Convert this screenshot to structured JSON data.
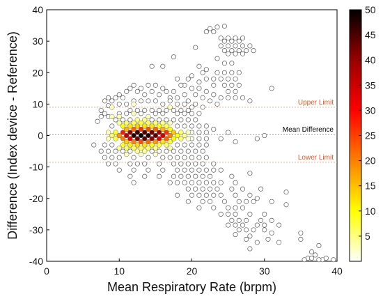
{
  "chart_data": {
    "type": "scatter",
    "subtype": "hexbin-density",
    "xlabel": "Mean Respiratory Rate (brpm)",
    "ylabel": "Difference (Index device - Reference)",
    "xlim": [
      0,
      40
    ],
    "ylim": [
      -40,
      40
    ],
    "x_ticks": [
      0,
      10,
      20,
      30,
      40
    ],
    "y_ticks": [
      -40,
      -30,
      -20,
      -10,
      0,
      10,
      20,
      30,
      40
    ],
    "grid": false,
    "reference_lines": [
      {
        "label": "Upper Limit",
        "y": 9,
        "color": "#f4a582"
      },
      {
        "label": "Mean Difference",
        "y": 0.3,
        "color": "#999999"
      },
      {
        "label": "Lower Limit",
        "y": -8.5,
        "color": "#f4a582"
      }
    ],
    "colorbar": {
      "min": 0,
      "max": 50,
      "ticks": [
        5,
        10,
        15,
        20,
        25,
        30,
        35,
        40,
        45,
        50
      ],
      "colors": [
        "#ffffff",
        "#ffff00",
        "#ff8000",
        "#ff0000",
        "#990000",
        "#000000"
      ]
    },
    "core_points": [
      [
        10.5,
        1,
        28
      ],
      [
        11.5,
        1,
        40
      ],
      [
        12.5,
        1,
        46
      ],
      [
        13.5,
        1,
        45
      ],
      [
        14.5,
        1,
        42
      ],
      [
        15.5,
        1,
        38
      ],
      [
        16.5,
        1,
        26
      ],
      [
        17.5,
        1,
        14
      ],
      [
        10,
        0,
        18
      ],
      [
        11,
        0,
        36
      ],
      [
        12,
        0,
        48
      ],
      [
        13,
        0,
        50
      ],
      [
        14,
        0,
        48
      ],
      [
        15,
        0,
        44
      ],
      [
        16,
        0,
        34
      ],
      [
        17,
        0,
        20
      ],
      [
        18,
        0,
        10
      ],
      [
        10.5,
        -1,
        20
      ],
      [
        11.5,
        -1,
        32
      ],
      [
        12.5,
        -1,
        42
      ],
      [
        13.5,
        -1,
        44
      ],
      [
        14.5,
        -1,
        40
      ],
      [
        15.5,
        -1,
        32
      ],
      [
        16.5,
        -1,
        22
      ],
      [
        17.5,
        -1,
        10
      ],
      [
        11,
        2,
        16
      ],
      [
        12,
        2,
        22
      ],
      [
        13,
        2,
        26
      ],
      [
        14,
        2,
        24
      ],
      [
        15,
        2,
        22
      ],
      [
        16,
        2,
        16
      ],
      [
        17,
        2,
        10
      ],
      [
        11,
        -2,
        14
      ],
      [
        12,
        -2,
        20
      ],
      [
        13,
        -2,
        24
      ],
      [
        14,
        -2,
        22
      ],
      [
        15,
        -2,
        18
      ],
      [
        16,
        -2,
        12
      ],
      [
        17,
        -2,
        8
      ],
      [
        10.5,
        3,
        10
      ],
      [
        11.5,
        3,
        12
      ],
      [
        12.5,
        3,
        14
      ],
      [
        13.5,
        3,
        12
      ],
      [
        14.5,
        3,
        12
      ],
      [
        15.5,
        3,
        10
      ],
      [
        16.5,
        3,
        7
      ],
      [
        10.5,
        -3,
        9
      ],
      [
        11.5,
        -3,
        11
      ],
      [
        12.5,
        -3,
        13
      ],
      [
        13.5,
        -3,
        12
      ],
      [
        14.5,
        -3,
        10
      ],
      [
        15.5,
        -3,
        8
      ],
      [
        16.5,
        -3,
        6
      ],
      [
        9.5,
        1,
        9
      ],
      [
        9.5,
        -1,
        8
      ],
      [
        9,
        0,
        6
      ],
      [
        18.5,
        1,
        6
      ],
      [
        18.5,
        -1,
        6
      ],
      [
        19,
        0,
        4
      ],
      [
        11,
        4,
        6
      ],
      [
        12,
        4,
        7
      ],
      [
        13,
        4,
        8
      ],
      [
        14,
        4,
        7
      ],
      [
        15,
        4,
        6
      ],
      [
        16,
        4,
        5
      ],
      [
        11,
        -4,
        6
      ],
      [
        12,
        -4,
        7
      ],
      [
        13,
        -4,
        7
      ],
      [
        14,
        -4,
        6
      ],
      [
        15,
        -4,
        5
      ],
      [
        12.5,
        5,
        5
      ],
      [
        13.5,
        5,
        5
      ],
      [
        12.5,
        -5,
        4
      ],
      [
        13.5,
        -5,
        4
      ],
      [
        10,
        4,
        4
      ],
      [
        17,
        4,
        3
      ],
      [
        10,
        -4,
        4
      ],
      [
        17,
        -4,
        3
      ],
      [
        8.5,
        -1,
        3
      ],
      [
        8.5,
        1,
        3
      ],
      [
        19.5,
        1,
        3
      ],
      [
        19.5,
        -1,
        2
      ],
      [
        9,
        6,
        3
      ],
      [
        10,
        6,
        3
      ],
      [
        12,
        7,
        3
      ],
      [
        14,
        6,
        2
      ],
      [
        11,
        -6,
        3
      ],
      [
        13,
        -6,
        2
      ],
      [
        15,
        -6,
        2
      ],
      [
        17,
        9,
        3
      ],
      [
        9,
        9,
        3
      ],
      [
        12,
        10,
        2
      ]
    ],
    "outlier_points": [
      [
        22.5,
        34
      ],
      [
        23.5,
        34.5
      ],
      [
        24.5,
        34.8
      ],
      [
        22,
        33
      ],
      [
        23,
        33
      ],
      [
        24,
        31
      ],
      [
        25,
        31
      ],
      [
        26,
        31
      ],
      [
        27,
        31
      ],
      [
        24.5,
        30
      ],
      [
        25.5,
        30
      ],
      [
        26.5,
        30
      ],
      [
        24,
        28.5
      ],
      [
        25,
        28.5
      ],
      [
        26,
        28.5
      ],
      [
        27,
        28.5
      ],
      [
        28,
        28.5
      ],
      [
        24.5,
        27
      ],
      [
        25.5,
        27
      ],
      [
        26.5,
        27
      ],
      [
        27.5,
        27
      ],
      [
        28.5,
        27
      ],
      [
        25,
        26
      ],
      [
        26,
        26
      ],
      [
        27,
        26
      ],
      [
        17.5,
        25
      ],
      [
        23.5,
        24.5
      ],
      [
        24.5,
        23
      ],
      [
        25.5,
        23
      ],
      [
        23.5,
        20
      ],
      [
        24.5,
        20
      ],
      [
        25.5,
        20
      ],
      [
        26.5,
        20
      ],
      [
        23,
        18
      ],
      [
        24,
        18
      ],
      [
        25,
        18
      ],
      [
        26,
        18
      ],
      [
        24.5,
        16
      ],
      [
        25.5,
        16
      ],
      [
        26.5,
        16
      ],
      [
        25,
        14
      ],
      [
        26,
        14
      ],
      [
        24,
        12
      ],
      [
        25,
        12
      ],
      [
        26,
        12
      ],
      [
        27,
        12
      ],
      [
        28,
        11
      ],
      [
        31,
        15
      ],
      [
        14.5,
        22
      ],
      [
        16,
        22
      ],
      [
        20.5,
        28
      ],
      [
        21,
        22
      ],
      [
        22,
        21
      ],
      [
        21.5,
        20
      ],
      [
        22,
        18
      ],
      [
        23,
        16
      ],
      [
        21,
        15
      ],
      [
        22,
        14
      ],
      [
        23,
        13
      ],
      [
        20,
        19
      ],
      [
        19.5,
        18
      ],
      [
        21,
        17
      ],
      [
        19,
        16
      ],
      [
        20,
        15
      ],
      [
        20.5,
        13
      ],
      [
        21.5,
        12
      ],
      [
        22.5,
        11
      ],
      [
        23.5,
        10
      ],
      [
        18,
        18
      ],
      [
        18.5,
        16
      ],
      [
        17.5,
        14
      ],
      [
        19,
        13
      ],
      [
        18,
        12
      ],
      [
        17,
        12
      ],
      [
        19.5,
        11
      ],
      [
        20.5,
        10
      ],
      [
        21.5,
        9
      ],
      [
        12,
        16
      ],
      [
        11.5,
        15
      ],
      [
        12.5,
        14
      ],
      [
        11,
        14
      ],
      [
        13,
        15
      ],
      [
        14,
        16
      ],
      [
        15,
        16
      ],
      [
        16,
        15
      ],
      [
        13.5,
        13
      ],
      [
        14.5,
        14
      ],
      [
        15.5,
        13
      ],
      [
        16.5,
        14
      ],
      [
        10,
        13
      ],
      [
        9.5,
        12
      ],
      [
        10.5,
        12
      ],
      [
        8.5,
        12
      ],
      [
        9,
        11
      ],
      [
        8,
        11
      ],
      [
        10,
        10
      ],
      [
        8.5,
        9.5
      ],
      [
        7.5,
        8
      ],
      [
        8,
        7
      ],
      [
        7.5,
        6
      ],
      [
        8.5,
        6
      ],
      [
        7,
        4.5
      ],
      [
        11,
        10
      ],
      [
        12,
        11
      ],
      [
        13,
        11
      ],
      [
        14,
        11
      ],
      [
        15,
        11
      ],
      [
        16,
        10
      ],
      [
        17,
        11
      ],
      [
        18,
        10
      ],
      [
        19,
        10
      ],
      [
        20,
        9
      ],
      [
        11.5,
        8
      ],
      [
        12.5,
        8
      ],
      [
        13.5,
        8
      ],
      [
        14.5,
        8
      ],
      [
        15.5,
        8
      ],
      [
        16.5,
        8
      ],
      [
        17.5,
        8
      ],
      [
        18.5,
        8
      ],
      [
        19.5,
        8
      ],
      [
        10,
        7
      ],
      [
        11,
        7
      ],
      [
        13,
        7
      ],
      [
        15,
        7
      ],
      [
        16,
        7
      ],
      [
        18,
        7
      ],
      [
        19,
        7
      ],
      [
        20,
        7
      ],
      [
        21,
        7
      ],
      [
        9.5,
        5
      ],
      [
        10.5,
        5
      ],
      [
        11.5,
        5
      ],
      [
        14.5,
        5
      ],
      [
        15.5,
        5
      ],
      [
        16.5,
        5
      ],
      [
        17.5,
        5
      ],
      [
        18.5,
        5
      ],
      [
        19.5,
        5
      ],
      [
        20.5,
        5
      ],
      [
        9,
        3
      ],
      [
        18,
        3
      ],
      [
        19,
        3
      ],
      [
        20,
        3
      ],
      [
        21,
        3
      ],
      [
        22,
        3
      ],
      [
        20,
        1
      ],
      [
        21,
        1
      ],
      [
        22,
        1
      ],
      [
        22,
        -1
      ],
      [
        21,
        -1
      ],
      [
        20,
        -1
      ],
      [
        6.5,
        -3
      ],
      [
        8,
        -3
      ],
      [
        9,
        -3
      ],
      [
        18,
        -3
      ],
      [
        19,
        -3
      ],
      [
        20,
        -3
      ],
      [
        21,
        -3
      ],
      [
        22,
        -3
      ],
      [
        26,
        -2
      ],
      [
        29,
        -1
      ],
      [
        30,
        0
      ],
      [
        24,
        -1
      ],
      [
        25,
        1
      ],
      [
        23,
        2
      ],
      [
        7.5,
        -5
      ],
      [
        8.5,
        -5
      ],
      [
        9.5,
        -5
      ],
      [
        10.5,
        -5
      ],
      [
        11.5,
        -5
      ],
      [
        14.5,
        -5
      ],
      [
        15.5,
        -5
      ],
      [
        16.5,
        -5
      ],
      [
        17.5,
        -5
      ],
      [
        18.5,
        -5
      ],
      [
        19.5,
        -5
      ],
      [
        20.5,
        -5
      ],
      [
        21.5,
        -5
      ],
      [
        8,
        -7
      ],
      [
        9,
        -7
      ],
      [
        10,
        -7
      ],
      [
        12,
        -7
      ],
      [
        14,
        -7
      ],
      [
        16,
        -7
      ],
      [
        17,
        -7
      ],
      [
        18,
        -7
      ],
      [
        19,
        -7
      ],
      [
        20,
        -7
      ],
      [
        21,
        -7
      ],
      [
        22,
        -7
      ],
      [
        8.5,
        -9
      ],
      [
        9.5,
        -9
      ],
      [
        11.5,
        -9
      ],
      [
        12.5,
        -9
      ],
      [
        13.5,
        -9
      ],
      [
        15.5,
        -9
      ],
      [
        17.5,
        -9
      ],
      [
        18.5,
        -9
      ],
      [
        19.5,
        -9
      ],
      [
        20.5,
        -9
      ],
      [
        21.5,
        -9
      ],
      [
        23,
        -9
      ],
      [
        10,
        -11
      ],
      [
        12,
        -11
      ],
      [
        14,
        -11
      ],
      [
        16,
        -11
      ],
      [
        18,
        -11
      ],
      [
        19,
        -11
      ],
      [
        20,
        -11
      ],
      [
        21,
        -11
      ],
      [
        22,
        -11
      ],
      [
        23,
        -11
      ],
      [
        24,
        -11
      ],
      [
        11.5,
        -13
      ],
      [
        13.5,
        -13
      ],
      [
        15.5,
        -13
      ],
      [
        17.5,
        -13
      ],
      [
        18.5,
        -13
      ],
      [
        19.5,
        -13
      ],
      [
        20.5,
        -13
      ],
      [
        21.5,
        -13
      ],
      [
        22.5,
        -13
      ],
      [
        25.5,
        -13
      ],
      [
        28,
        -12
      ],
      [
        12,
        -15
      ],
      [
        17,
        -15
      ],
      [
        18,
        -15
      ],
      [
        19,
        -15
      ],
      [
        20,
        -15
      ],
      [
        21,
        -15
      ],
      [
        22,
        -15
      ],
      [
        23,
        -15
      ],
      [
        24,
        -15
      ],
      [
        26,
        -15
      ],
      [
        19.5,
        -17
      ],
      [
        20.5,
        -17
      ],
      [
        21.5,
        -17
      ],
      [
        22.5,
        -17
      ],
      [
        23.5,
        -17
      ],
      [
        25.5,
        -17
      ],
      [
        27,
        -17
      ],
      [
        29.5,
        -17
      ],
      [
        33,
        -18
      ],
      [
        18,
        -19
      ],
      [
        20,
        -19
      ],
      [
        21,
        -19
      ],
      [
        22,
        -19
      ],
      [
        23,
        -19
      ],
      [
        24,
        -19
      ],
      [
        26,
        -19
      ],
      [
        28,
        -19
      ],
      [
        29,
        -20
      ],
      [
        19.5,
        -21
      ],
      [
        21.5,
        -21
      ],
      [
        22.5,
        -21
      ],
      [
        24.5,
        -21
      ],
      [
        26.5,
        -21
      ],
      [
        27.5,
        -21
      ],
      [
        28.5,
        -21
      ],
      [
        31,
        -21
      ],
      [
        33,
        -22
      ],
      [
        21,
        -23
      ],
      [
        23,
        -23
      ],
      [
        25,
        -23
      ],
      [
        26,
        -23
      ],
      [
        27,
        -23
      ],
      [
        24,
        -25
      ],
      [
        25,
        -25
      ],
      [
        26,
        -25
      ],
      [
        28,
        -25
      ],
      [
        30,
        -25
      ],
      [
        25.5,
        -27
      ],
      [
        26.5,
        -27
      ],
      [
        27.5,
        -27
      ],
      [
        29.5,
        -27
      ],
      [
        31,
        -27
      ],
      [
        25,
        -28.5
      ],
      [
        26,
        -28.5
      ],
      [
        27,
        -28.5
      ],
      [
        29,
        -28.5
      ],
      [
        30,
        -28.5
      ],
      [
        32,
        -28.5
      ],
      [
        26.5,
        -30
      ],
      [
        27.5,
        -30
      ],
      [
        28.5,
        -30
      ],
      [
        30,
        -30
      ],
      [
        31,
        -31
      ],
      [
        26,
        -31.5
      ],
      [
        28,
        -32
      ],
      [
        27.5,
        -33
      ],
      [
        30.5,
        -33
      ],
      [
        29,
        -34
      ],
      [
        32,
        -34
      ],
      [
        35,
        -31
      ],
      [
        35,
        -33
      ],
      [
        28,
        -36
      ],
      [
        37.5,
        -35
      ],
      [
        36.5,
        -37
      ],
      [
        37,
        -38
      ],
      [
        36,
        -39
      ],
      [
        35.5,
        -39.5
      ],
      [
        38,
        -39.5
      ],
      [
        38.5,
        -39
      ],
      [
        37.5,
        -39.5
      ],
      [
        39.5,
        -39.5
      ],
      [
        36.5,
        -39
      ]
    ]
  }
}
